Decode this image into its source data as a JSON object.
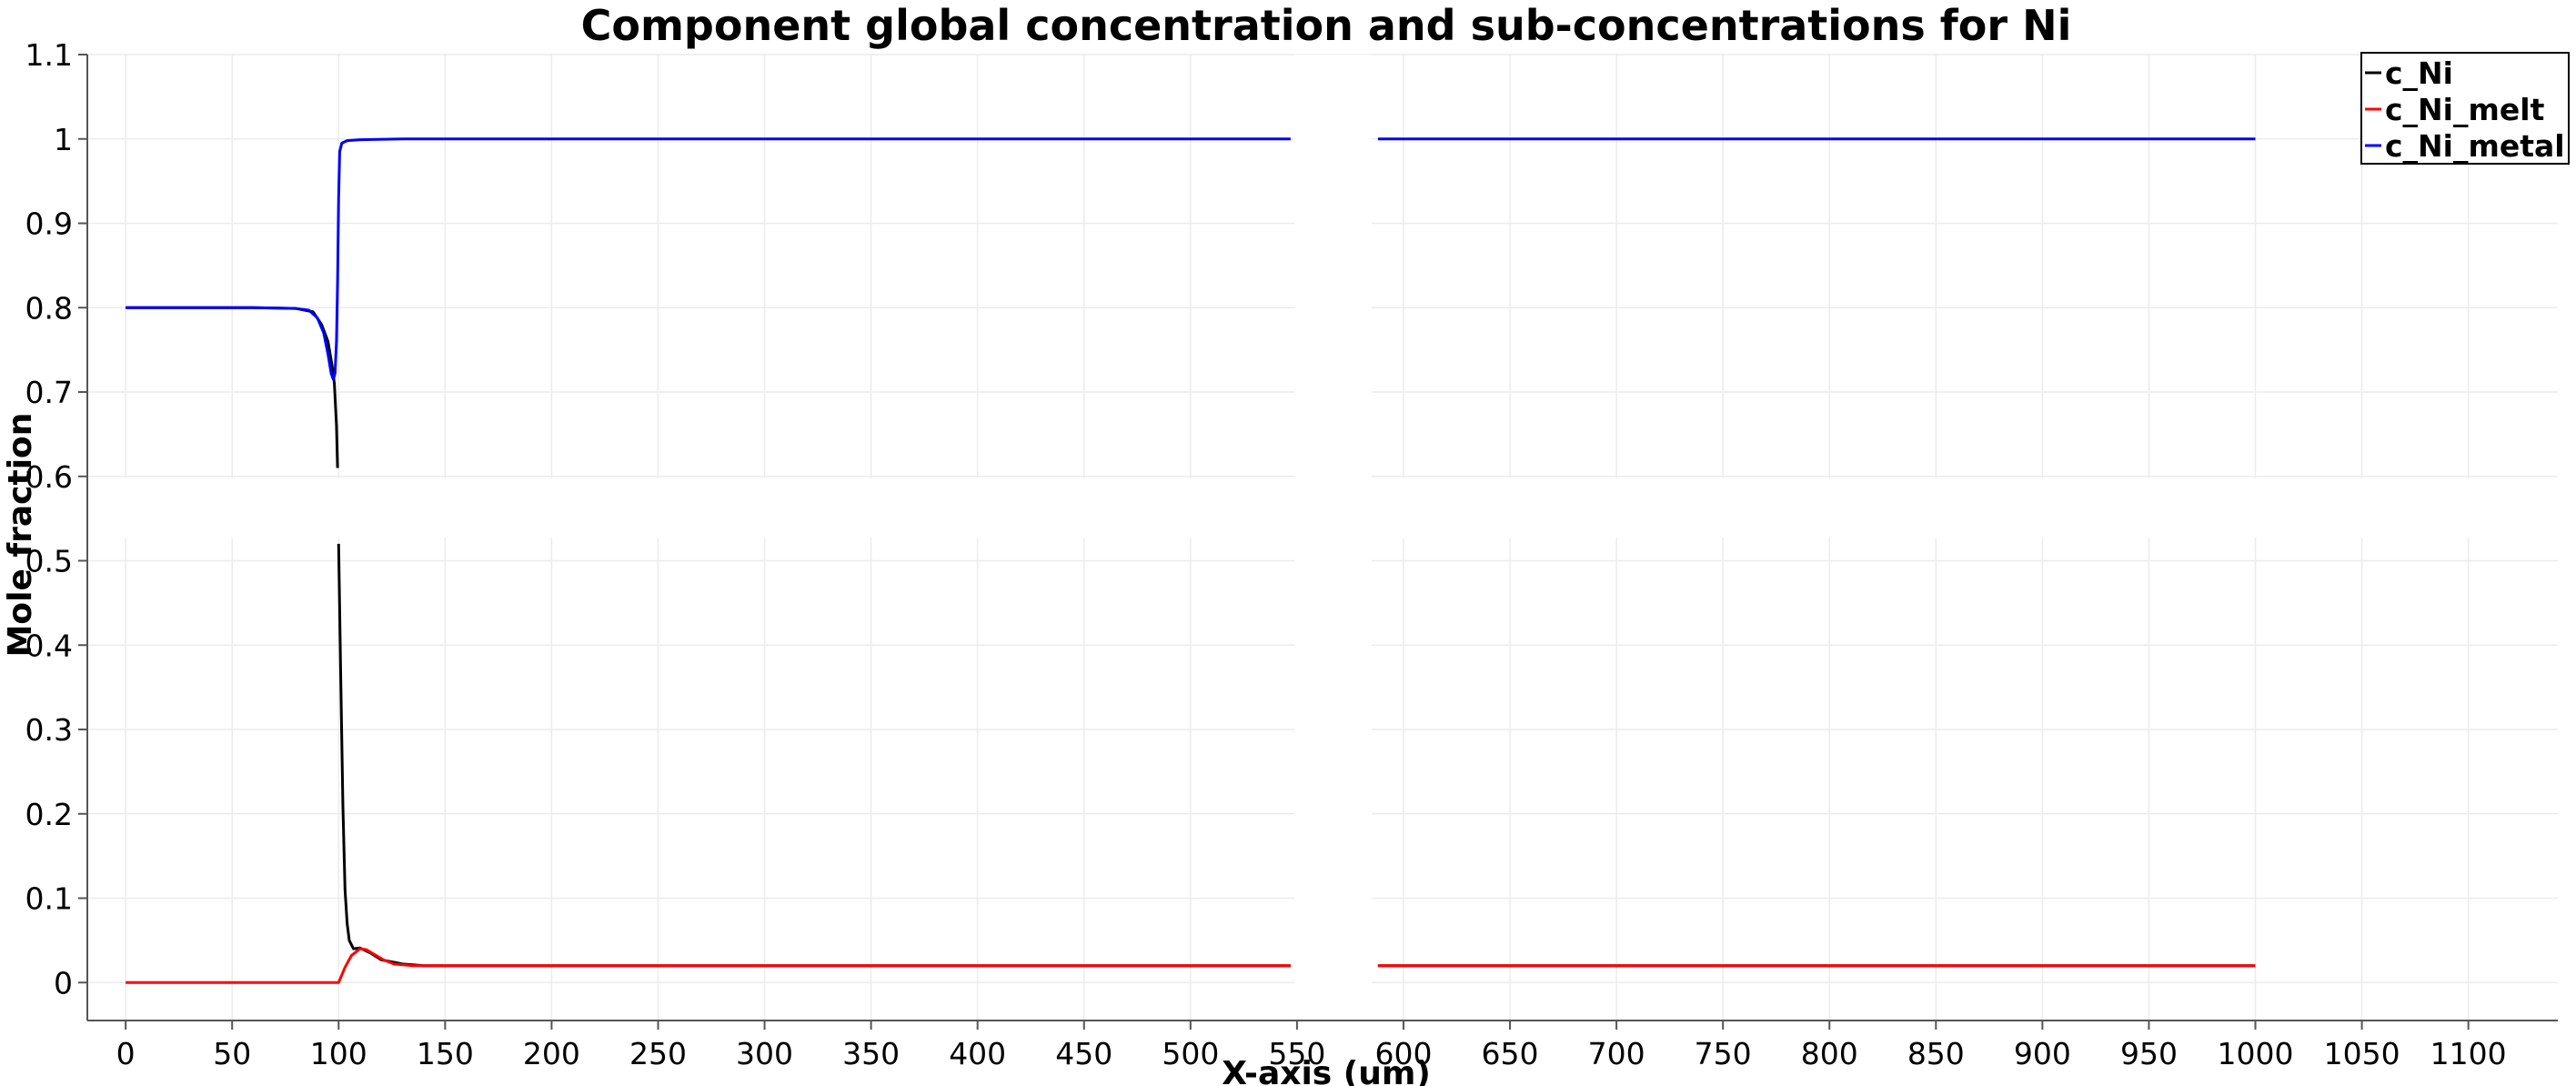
{
  "chart_data": {
    "type": "line",
    "title": "Component global concentration and sub-concentrations for Ni",
    "xlabel": "X-axis (um)",
    "ylabel": "Mole fraction",
    "xlim": [
      -18,
      1142
    ],
    "ylim": [
      -0.045,
      1.1
    ],
    "xticks": [
      0,
      50,
      100,
      150,
      200,
      250,
      300,
      350,
      400,
      450,
      500,
      550,
      600,
      650,
      700,
      750,
      800,
      850,
      900,
      950,
      1000,
      1050,
      1100
    ],
    "yticks": [
      0,
      0.1,
      0.2,
      0.3,
      0.4,
      0.5,
      0.6,
      0.7,
      0.8,
      0.9,
      1,
      1.1
    ],
    "xtick_labels": [
      "0",
      "50",
      "100",
      "150",
      "200",
      "250",
      "300",
      "350",
      "400",
      "450",
      "500",
      "550",
      "600",
      "650",
      "700",
      "750",
      "800",
      "850",
      "900",
      "950",
      "1000",
      "1050",
      "1100"
    ],
    "ytick_labels": [
      "0",
      "0.1",
      "0.2",
      "0.3",
      "0.4",
      "0.5",
      "0.6",
      "0.7",
      "0.8",
      "0.9",
      "1",
      "1.1"
    ],
    "grid": true,
    "legend_position": "top-right",
    "series": [
      {
        "name": "c_Ni",
        "color": "#000000",
        "segments": [
          [
            [
              0,
              0.8
            ],
            [
              60,
              0.8
            ],
            [
              80,
              0.799
            ],
            [
              88,
              0.795
            ],
            [
              92,
              0.78
            ],
            [
              95,
              0.76
            ],
            [
              97,
              0.73
            ],
            [
              98,
              0.71
            ],
            [
              99,
              0.66
            ],
            [
              99.5,
              0.61
            ]
          ],
          [
            [
              100,
              0.52
            ],
            [
              101,
              0.36
            ],
            [
              102,
              0.21
            ],
            [
              103,
              0.11
            ],
            [
              104,
              0.07
            ],
            [
              105,
              0.05
            ],
            [
              107,
              0.04
            ],
            [
              110,
              0.041
            ],
            [
              115,
              0.035
            ],
            [
              120,
              0.027
            ],
            [
              130,
              0.022
            ],
            [
              140,
              0.02
            ],
            [
              200,
              0.02
            ],
            [
              300,
              0.02
            ],
            [
              400,
              0.02
            ],
            [
              547,
              0.02
            ]
          ],
          [
            [
              588,
              0.02
            ],
            [
              700,
              0.02
            ],
            [
              800,
              0.02
            ],
            [
              900,
              0.02
            ],
            [
              1000,
              0.02
            ]
          ]
        ]
      },
      {
        "name": "c_Ni_melt",
        "color": "#ff0000",
        "segments": [
          [
            [
              0,
              0
            ],
            [
              50,
              0
            ],
            [
              90,
              0
            ],
            [
              97,
              0
            ],
            [
              100,
              0.0
            ],
            [
              101,
              0.006
            ],
            [
              103,
              0.018
            ],
            [
              106,
              0.032
            ],
            [
              110,
              0.04
            ],
            [
              113,
              0.039
            ],
            [
              117,
              0.033
            ],
            [
              121,
              0.027
            ],
            [
              126,
              0.022
            ],
            [
              135,
              0.02
            ],
            [
              200,
              0.02
            ],
            [
              300,
              0.02
            ],
            [
              400,
              0.02
            ],
            [
              547,
              0.02
            ]
          ],
          [
            [
              588,
              0.02
            ],
            [
              700,
              0.02
            ],
            [
              800,
              0.02
            ],
            [
              900,
              0.02
            ],
            [
              1000,
              0.02
            ]
          ]
        ]
      },
      {
        "name": "c_Ni_metal",
        "color": "#0000ff",
        "segments": [
          [
            [
              0,
              0.8
            ],
            [
              60,
              0.8
            ],
            [
              80,
              0.799
            ],
            [
              86,
              0.797
            ],
            [
              90,
              0.788
            ],
            [
              93,
              0.77
            ],
            [
              95,
              0.745
            ],
            [
              96.5,
              0.722
            ],
            [
              97.5,
              0.715
            ],
            [
              98.3,
              0.722
            ],
            [
              99,
              0.76
            ],
            [
              99.5,
              0.83
            ],
            [
              100,
              0.93
            ],
            [
              100.5,
              0.985
            ],
            [
              101.5,
              0.995
            ],
            [
              104,
              0.998
            ],
            [
              110,
              0.999
            ],
            [
              130,
              1.0
            ],
            [
              200,
              1.0
            ],
            [
              300,
              1.0
            ],
            [
              400,
              1.0
            ],
            [
              547,
              1.0
            ]
          ],
          [
            [
              588,
              1.0
            ],
            [
              700,
              1.0
            ],
            [
              800,
              1.0
            ],
            [
              900,
              1.0
            ],
            [
              1000,
              1.0
            ]
          ]
        ]
      }
    ]
  }
}
